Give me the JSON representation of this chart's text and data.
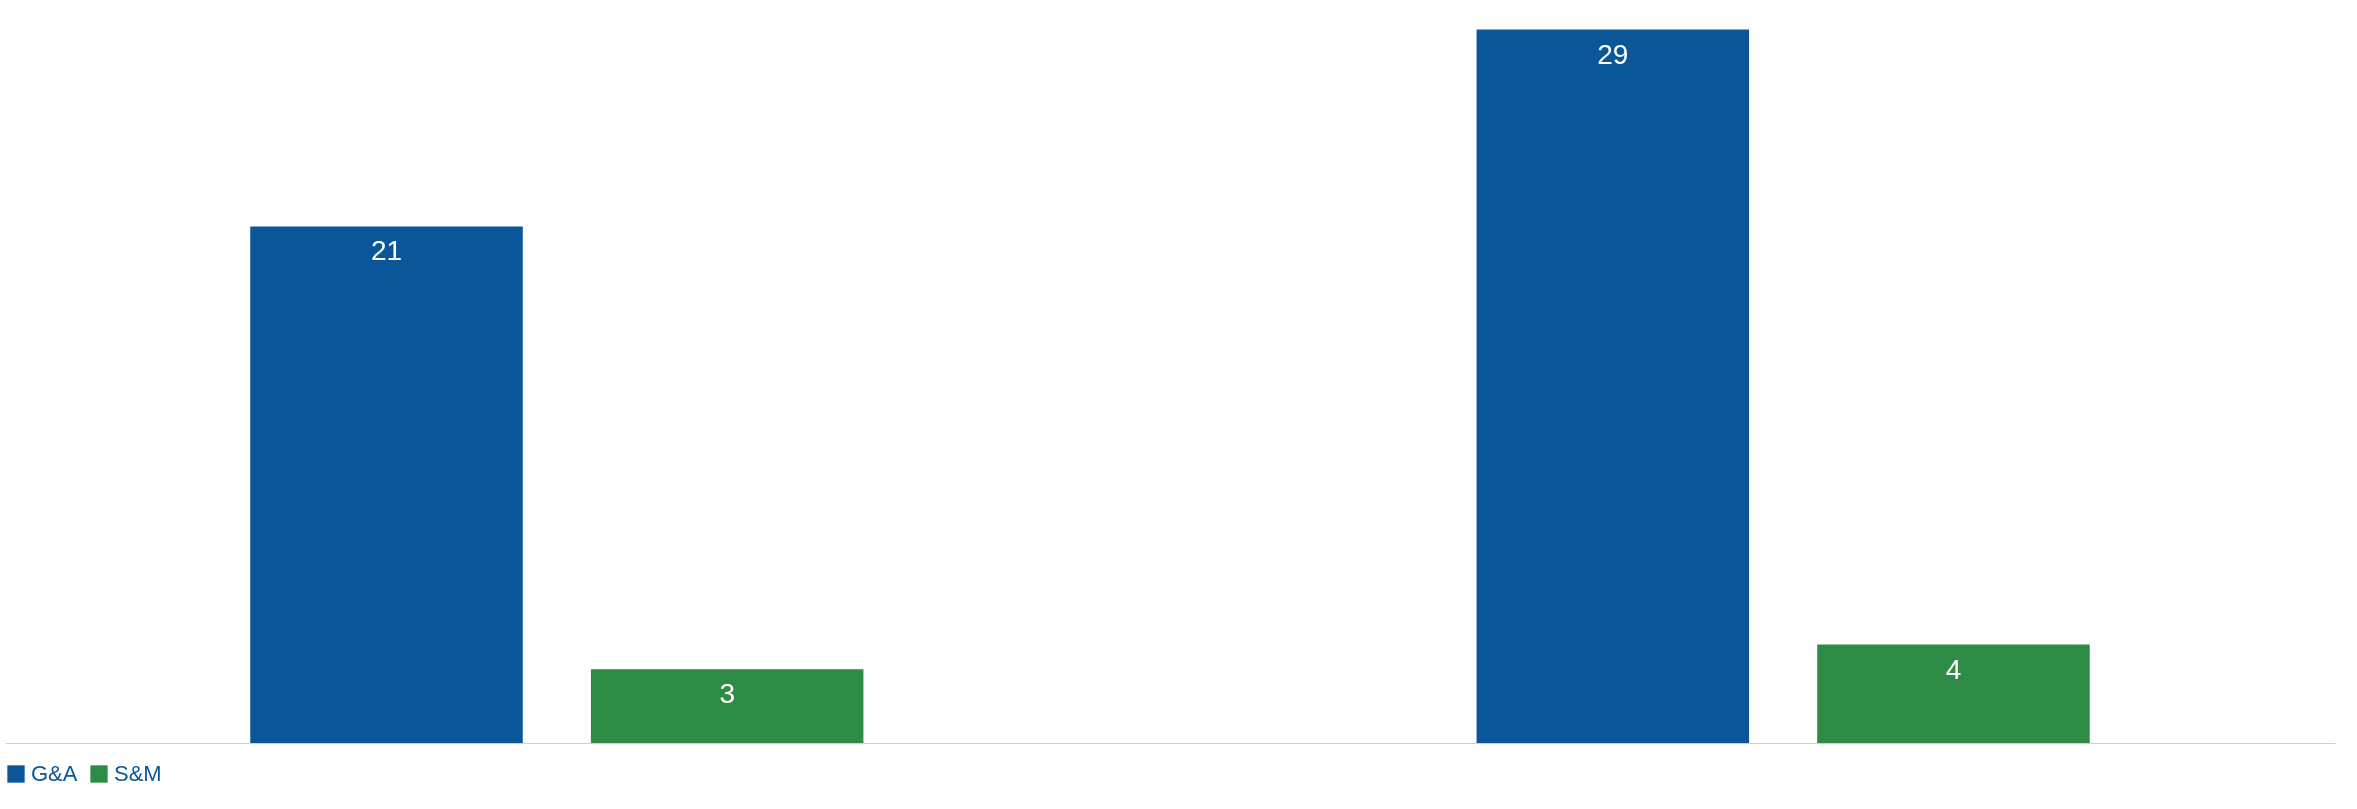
{
  "chart_data": {
    "type": "bar",
    "categories": [
      null,
      null
    ],
    "series": [
      {
        "name": "G&A",
        "color": "#0b5699",
        "values": [
          21,
          29
        ]
      },
      {
        "name": "S&M",
        "color": "#2e8b45",
        "values": [
          3,
          4
        ]
      }
    ],
    "data_labels": true,
    "grid": false,
    "legend": "bottom"
  }
}
